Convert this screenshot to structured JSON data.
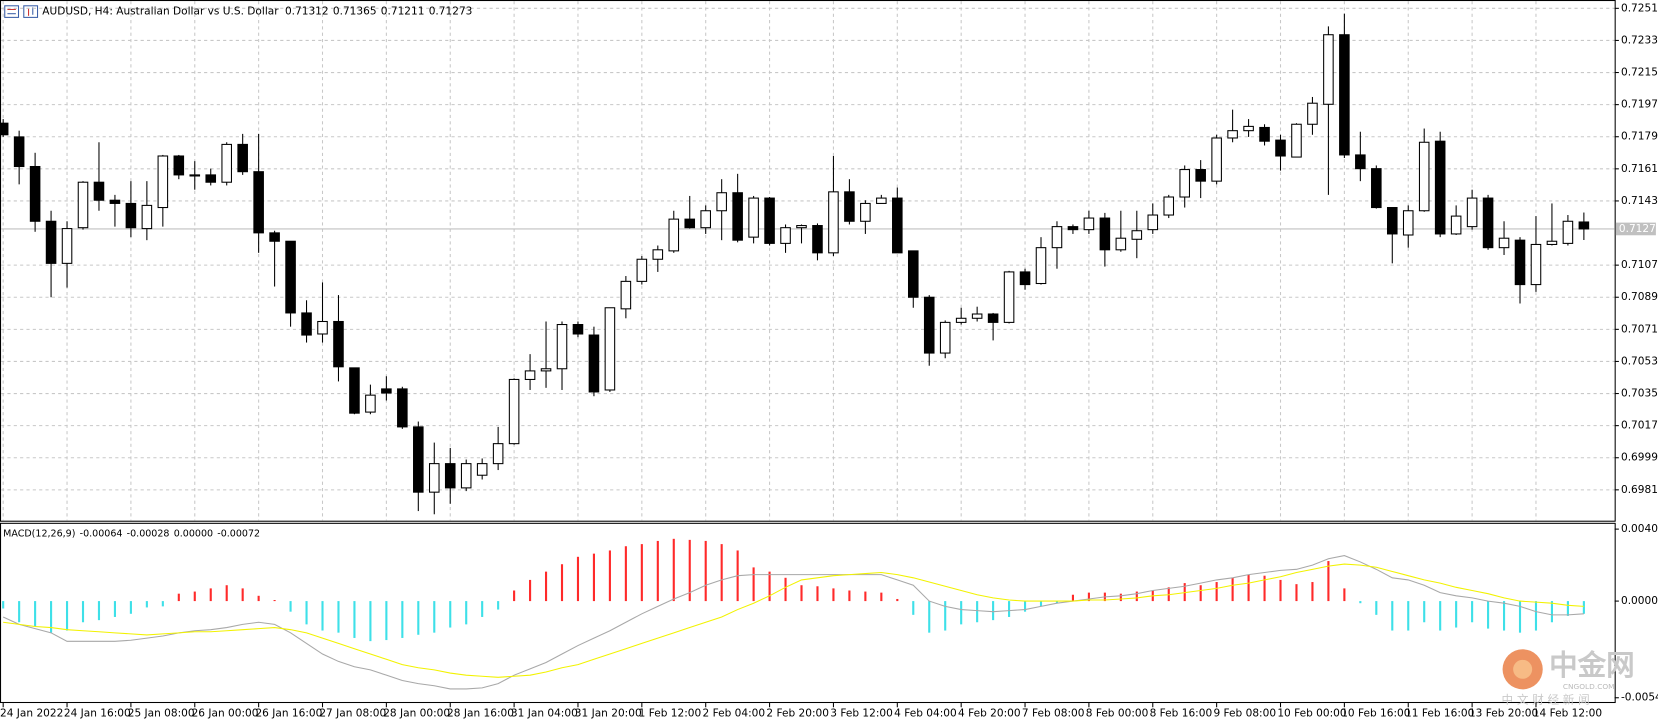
{
  "chart_data": [
    {
      "type": "candlestick",
      "title": "AUDUSD, H4:  Australian Dollar vs U.S. Dollar",
      "ohlc": [
        0.71312,
        0.71365,
        0.71211,
        0.71273
      ],
      "up_color": "#ffffff",
      "down_color": "#000000",
      "grid": true,
      "ylim": [
        0.69643,
        0.72539
      ],
      "yticks": [
        {
          "value": 0.7251,
          "label": "0.72510"
        },
        {
          "value": 0.7233,
          "label": "0.72330"
        },
        {
          "value": 0.7215,
          "label": "0.72150"
        },
        {
          "value": 0.7197,
          "label": "0.71970"
        },
        {
          "value": 0.7179,
          "label": "0.71790"
        },
        {
          "value": 0.7161,
          "label": "0.71610"
        },
        {
          "value": 0.7143,
          "label": "0.71430"
        },
        {
          "value": 0.7107,
          "label": "0.71070"
        },
        {
          "value": 0.7089,
          "label": "0.70890"
        },
        {
          "value": 0.7071,
          "label": "0.70710"
        },
        {
          "value": 0.7053,
          "label": "0.70530"
        },
        {
          "value": 0.7035,
          "label": "0.70350"
        },
        {
          "value": 0.7017,
          "label": "0.70170"
        },
        {
          "value": 0.6999,
          "label": "0.69990"
        },
        {
          "value": 0.6981,
          "label": "0.69810"
        }
      ],
      "categories": [
        "24 Jan 2022",
        null,
        null,
        null,
        "24 Jan 16:00",
        null,
        null,
        null,
        "25 Jan 08:00",
        null,
        null,
        null,
        "26 Jan 00:00",
        null,
        null,
        null,
        "26 Jan 16:00",
        null,
        null,
        null,
        "27 Jan 08:00",
        null,
        null,
        null,
        "28 Jan 00:00",
        null,
        null,
        null,
        "28 Jan 16:00",
        null,
        null,
        null,
        "31 Jan 04:00",
        null,
        null,
        null,
        "31 Jan 20:00",
        null,
        null,
        null,
        "1 Feb 12:00",
        null,
        null,
        null,
        "2 Feb 04:00",
        null,
        null,
        null,
        "2 Feb 20:00",
        null,
        null,
        null,
        "3 Feb 12:00",
        null,
        null,
        null,
        "4 Feb 04:00",
        null,
        null,
        null,
        "4 Feb 20:00",
        null,
        null,
        null,
        "7 Feb 08:00",
        null,
        null,
        null,
        "8 Feb 00:00",
        null,
        null,
        null,
        "8 Feb 16:00",
        null,
        null,
        null,
        "9 Feb 08:00",
        null,
        null,
        null,
        "10 Feb 00:00",
        null,
        null,
        null,
        "10 Feb 16:00",
        null,
        null,
        null,
        "11 Feb 16:00",
        null,
        null,
        null,
        "13 Feb 20:00",
        null,
        null,
        null,
        "14 Feb 12:00",
        null,
        null,
        null
      ],
      "open": [
        0.71866,
        0.71789,
        0.71623,
        0.71316,
        0.7108,
        0.7128,
        0.71535,
        0.71434,
        0.71416,
        0.71275,
        0.71393,
        0.71682,
        0.7157,
        0.71576,
        0.71535,
        0.71747,
        0.71594,
        0.71251,
        0.71204,
        0.70802,
        0.70684,
        0.70754,
        0.70494,
        0.70246,
        0.70376,
        0.70376,
        0.70163,
        0.69797,
        0.69957,
        0.69821,
        0.69892,
        0.69957,
        0.70069,
        0.70429,
        0.70477,
        0.70489,
        0.70737,
        0.70678,
        0.7037,
        0.70825,
        0.70979,
        0.71103,
        0.7115,
        0.71328,
        0.7128,
        0.71375,
        0.71476,
        0.71227,
        0.71446,
        0.71192,
        0.7128,
        0.71292,
        0.71139,
        0.71481,
        0.71316,
        0.71416,
        0.71446,
        0.7115,
        0.7089,
        0.70577,
        0.70749,
        0.70772,
        0.70796,
        0.70749,
        0.71032,
        0.70967,
        0.71168,
        0.71286,
        0.71269,
        0.71334,
        0.71156,
        0.71215,
        0.71269,
        0.71351,
        0.71452,
        0.71606,
        0.71541,
        0.71783,
        0.71824,
        0.71842,
        0.71771,
        0.71676,
        0.7186,
        0.71972,
        0.72362,
        0.71688,
        0.71611,
        0.71393,
        0.71239,
        0.71375,
        0.71765,
        0.71245,
        0.71286,
        0.71446,
        0.71168,
        0.7121,
        0.70961,
        0.71186,
        0.71192,
        0.71312
      ],
      "high": [
        0.71889,
        0.71824,
        0.717,
        0.71375,
        0.71316,
        0.71541,
        0.71759,
        0.71464,
        0.71541,
        0.71541,
        0.71688,
        0.71688,
        0.71653,
        0.71611,
        0.71759,
        0.71806,
        0.71806,
        0.71263,
        0.71204,
        0.70873,
        0.70973,
        0.70902,
        0.70494,
        0.704,
        0.70447,
        0.70388,
        0.70193,
        0.70075,
        0.70045,
        0.6998,
        0.69986,
        0.70163,
        0.70435,
        0.70571,
        0.70754,
        0.70754,
        0.70754,
        0.70725,
        0.70831,
        0.71009,
        0.71121,
        0.7118,
        0.71375,
        0.71458,
        0.71405,
        0.71552,
        0.71582,
        0.71458,
        0.71452,
        0.71298,
        0.71298,
        0.71304,
        0.71682,
        0.71552,
        0.71434,
        0.71464,
        0.71505,
        0.7115,
        0.70902,
        0.7076,
        0.70831,
        0.70837,
        0.70802,
        0.71038,
        0.7105,
        0.71227,
        0.71316,
        0.71298,
        0.71375,
        0.71363,
        0.71375,
        0.71375,
        0.71416,
        0.71464,
        0.71629,
        0.71659,
        0.71801,
        0.71942,
        0.71889,
        0.7186,
        0.71801,
        0.71866,
        0.72013,
        0.72409,
        0.7248,
        0.71818,
        0.71629,
        0.71393,
        0.71405,
        0.71836,
        0.71818,
        0.71405,
        0.71493,
        0.71464,
        0.71316,
        0.71227,
        0.71345,
        0.71416,
        0.71351,
        0.71365
      ],
      "low": [
        0.71789,
        0.71523,
        0.71257,
        0.7089,
        0.70944,
        0.71269,
        0.71375,
        0.71286,
        0.71227,
        0.7121,
        0.71286,
        0.71552,
        0.71493,
        0.71517,
        0.71517,
        0.71576,
        0.71139,
        0.7095,
        0.70725,
        0.70636,
        0.70636,
        0.70418,
        0.70234,
        0.70234,
        0.70311,
        0.70152,
        0.69691,
        0.69673,
        0.69732,
        0.69803,
        0.69868,
        0.69921,
        0.70063,
        0.7037,
        0.70382,
        0.7037,
        0.70666,
        0.70335,
        0.70359,
        0.70772,
        0.70961,
        0.71032,
        0.71139,
        0.71275,
        0.71245,
        0.7121,
        0.71198,
        0.71192,
        0.7118,
        0.71139,
        0.71192,
        0.71097,
        0.71121,
        0.71298,
        0.71245,
        0.71416,
        0.71139,
        0.70831,
        0.70506,
        0.70548,
        0.70737,
        0.70754,
        0.70648,
        0.70743,
        0.70932,
        0.70961,
        0.7105,
        0.71245,
        0.71245,
        0.71062,
        0.71145,
        0.71109,
        0.71245,
        0.71334,
        0.71393,
        0.71446,
        0.71523,
        0.71759,
        0.71789,
        0.71741,
        0.716,
        0.71676,
        0.71801,
        0.71464,
        0.71671,
        0.71541,
        0.71387,
        0.7108,
        0.71168,
        0.71369,
        0.71227,
        0.71239,
        0.71269,
        0.71156,
        0.71127,
        0.70855,
        0.7092,
        0.7118,
        0.7118,
        0.71211
      ],
      "close": [
        0.71801,
        0.71623,
        0.71316,
        0.7108,
        0.71275,
        0.71535,
        0.71434,
        0.71416,
        0.7128,
        0.71405,
        0.71682,
        0.71576,
        0.71576,
        0.71535,
        0.71747,
        0.71594,
        0.71251,
        0.71204,
        0.70802,
        0.70678,
        0.70754,
        0.705,
        0.7024,
        0.70341,
        0.70353,
        0.70163,
        0.69797,
        0.69957,
        0.69821,
        0.69957,
        0.69957,
        0.70069,
        0.70429,
        0.70477,
        0.70489,
        0.70737,
        0.70684,
        0.70359,
        0.70831,
        0.70979,
        0.71103,
        0.71156,
        0.71328,
        0.7128,
        0.71375,
        0.71476,
        0.7121,
        0.71446,
        0.71192,
        0.7128,
        0.71292,
        0.71139,
        0.71481,
        0.71316,
        0.71416,
        0.71446,
        0.71139,
        0.7089,
        0.70577,
        0.70749,
        0.70772,
        0.70796,
        0.70749,
        0.71032,
        0.70961,
        0.71168,
        0.71286,
        0.71269,
        0.71334,
        0.71156,
        0.71221,
        0.71263,
        0.71351,
        0.71452,
        0.71606,
        0.71541,
        0.71783,
        0.71824,
        0.71848,
        0.71765,
        0.71682,
        0.7186,
        0.71978,
        0.72362,
        0.71688,
        0.71611,
        0.71393,
        0.71245,
        0.71375,
        0.71759,
        0.71245,
        0.71345,
        0.71446,
        0.71168,
        0.71221,
        0.70961,
        0.71186,
        0.71204,
        0.71316,
        0.71273
      ]
    },
    {
      "type": "macd",
      "title": "MACD(12,26,9)",
      "title_values": [
        -0.00064,
        -0.00028,
        {
          "value": 0,
          "label": "0.00000"
        },
        -0.00072
      ],
      "ylim": [
        -0.00548,
        0.00408
      ],
      "yticks": [
        0.00408,
        {
          "value": 0,
          "label": "0.00000"
        },
        -0.00548
      ],
      "series": [
        {
          "type": "histogram",
          "color": "#ff2a2a",
          "negative_color": "#3ee0e8",
          "values": [
            -0.00042,
            -0.0012,
            -0.00144,
            -0.00179,
            -0.00167,
            -0.0012,
            -0.00108,
            -0.0009,
            -0.00072,
            -0.00036,
            -0.0003,
            0.00042,
            0.00054,
            0.00072,
            0.0009,
            0.00072,
            0.0003,
            6e-05,
            -0.0006,
            -0.00132,
            -0.00167,
            -0.00179,
            -0.00209,
            -0.00227,
            -0.00221,
            -0.00209,
            -0.00191,
            -0.00179,
            -0.0015,
            -0.00132,
            -0.0009,
            -0.00048,
            0.0006,
            0.0012,
            0.00167,
            0.00209,
            0.00251,
            0.00269,
            0.00287,
            0.00311,
            0.00323,
            0.00341,
            0.00353,
            0.00347,
            0.00341,
            0.00323,
            0.00287,
            0.00191,
            0.00167,
            0.00132,
            0.0009,
            0.00084,
            0.00072,
            0.0006,
            0.00054,
            0.00048,
            0.00012,
            -0.00078,
            -0.00179,
            -0.00167,
            -0.00132,
            -0.0012,
            -0.00108,
            -0.0009,
            -0.0006,
            -0.0003,
            -0.00012,
            0.00036,
            0.00048,
            0.00048,
            0.00042,
            0.00054,
            0.0006,
            0.00078,
            0.00102,
            0.0009,
            0.00108,
            0.00132,
            0.0015,
            0.00144,
            0.0012,
            0.00096,
            0.00108,
            0.00227,
            0.00072,
            -0.00012,
            -0.00078,
            -0.00167,
            -0.00167,
            -0.0012,
            -0.00167,
            -0.0015,
            -0.0012,
            -0.00156,
            -0.00167,
            -0.00179,
            -0.00167,
            -0.0012,
            -0.00084,
            -0.00072
          ]
        },
        {
          "type": "line",
          "color": "#a8a8a8",
          "values": [
            -0.0009,
            -0.00132,
            -0.00156,
            -0.0018,
            -0.00228,
            -0.00228,
            -0.00228,
            -0.00228,
            -0.00222,
            -0.0021,
            -0.00198,
            -0.0018,
            -0.00168,
            -0.00162,
            -0.0015,
            -0.00132,
            -0.0012,
            -0.00132,
            -0.0018,
            -0.0024,
            -0.003,
            -0.00342,
            -0.00372,
            -0.0039,
            -0.0042,
            -0.0045,
            -0.00468,
            -0.0048,
            -0.00498,
            -0.00498,
            -0.00492,
            -0.00468,
            -0.0042,
            -0.00384,
            -0.00348,
            -0.003,
            -0.00252,
            -0.0021,
            -0.00168,
            -0.0012,
            -0.00072,
            -0.0003,
            0.00012,
            0.00048,
            0.0009,
            0.0012,
            0.00144,
            0.0015,
            0.0015,
            0.0015,
            0.0015,
            0.0015,
            0.0015,
            0.0015,
            0.0015,
            0.0015,
            0.0012,
            0.0009,
            0,
            -0.0003,
            -0.00048,
            -0.00054,
            -0.0006,
            -0.00054,
            -0.00048,
            -0.0003,
            -0.00012,
            0,
            0.00012,
            0.00024,
            0.0003,
            0.00042,
            0.0006,
            0.00072,
            0.00084,
            0.00102,
            0.0012,
            0.00132,
            0.0015,
            0.00162,
            0.00174,
            0.0018,
            0.00204,
            0.0024,
            0.00258,
            0.00222,
            0.0018,
            0.00132,
            0.0012,
            0.0009,
            0.00048,
            0.0003,
            0.00018,
            0,
            -0.00012,
            -0.0003,
            -0.0006,
            -0.00078,
            -0.00078,
            -0.00072
          ]
        },
        {
          "type": "line",
          "color": "#f2f200",
          "values": [
            -0.0012,
            -0.00132,
            -0.00144,
            -0.0015,
            -0.00162,
            -0.00168,
            -0.00174,
            -0.0018,
            -0.00186,
            -0.00192,
            -0.00186,
            -0.0018,
            -0.00174,
            -0.00174,
            -0.00168,
            -0.00162,
            -0.00156,
            -0.0015,
            -0.00162,
            -0.0018,
            -0.0021,
            -0.0024,
            -0.0027,
            -0.003,
            -0.0033,
            -0.0036,
            -0.00378,
            -0.0039,
            -0.00408,
            -0.0042,
            -0.00426,
            -0.00432,
            -0.00426,
            -0.0042,
            -0.00402,
            -0.00378,
            -0.0036,
            -0.0033,
            -0.003,
            -0.0027,
            -0.0024,
            -0.0021,
            -0.0018,
            -0.0015,
            -0.0012,
            -0.0009,
            -0.00048,
            -0.00012,
            0.0003,
            0.00078,
            0.0012,
            0.00132,
            0.00144,
            0.0015,
            0.00156,
            0.00162,
            0.0015,
            0.00132,
            0.00108,
            0.00084,
            0.0006,
            0.00036,
            0.00018,
            6e-05,
            0,
            0,
            0,
            0,
            6e-05,
            6e-05,
            0.00012,
            0.00018,
            0.0003,
            0.00036,
            0.00048,
            0.0006,
            0.00072,
            0.0009,
            0.00102,
            0.0012,
            0.00138,
            0.00162,
            0.0018,
            0.00198,
            0.0021,
            0.00204,
            0.00192,
            0.00168,
            0.00144,
            0.0012,
            0.00102,
            0.00078,
            0.0006,
            0.00042,
            0.00018,
            0,
            -6e-05,
            -0.00012,
            -0.00024,
            -0.0003
          ]
        }
      ]
    }
  ],
  "watermark": {
    "name": "中金网",
    "url": "CNGOLD.COM",
    "tagline": "中 文 财 经 新 闻"
  }
}
